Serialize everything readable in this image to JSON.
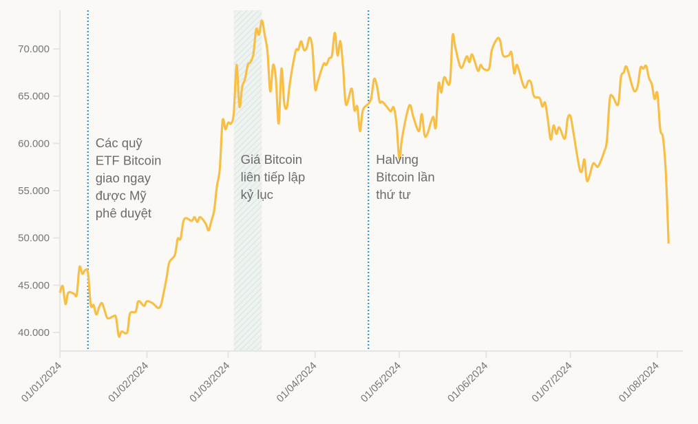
{
  "chart_data": {
    "type": "line",
    "title": "",
    "xlabel": "",
    "ylabel": "",
    "x_unit": "days since 01/01/2024",
    "xlim": [
      0,
      217
    ],
    "ylim": [
      38000,
      73500
    ],
    "y_ticks": [
      40000,
      45000,
      50000,
      55000,
      60000,
      65000,
      70000
    ],
    "y_tick_labels": [
      "40.000",
      "45.000",
      "50.000",
      "55.000",
      "60.000",
      "65.000",
      "70.000"
    ],
    "x_ticks": [
      0,
      31,
      60,
      91,
      121,
      152,
      182,
      213
    ],
    "x_tick_labels": [
      "01/01/2024",
      "01/02/2024",
      "01/03/2024",
      "01/04/2024",
      "01/05/2024",
      "01/06/2024",
      "01/07/2024",
      "01/08/2024"
    ],
    "line_color": "#f8bf47",
    "series": [
      {
        "name": "Bitcoin",
        "x": [
          0,
          1,
          2,
          3,
          5,
          6,
          7,
          8,
          9,
          10,
          11,
          12,
          13,
          14,
          15,
          16,
          17,
          19,
          20,
          21,
          22,
          24,
          25,
          27,
          28,
          30,
          31,
          33,
          35,
          36,
          37,
          38,
          39,
          41,
          42,
          43,
          44,
          45,
          47,
          48,
          49,
          50,
          52,
          53,
          54,
          55,
          56,
          57,
          58,
          59,
          60,
          61,
          62,
          63,
          64,
          65,
          66,
          67,
          68,
          69,
          70,
          71,
          72,
          73,
          74,
          75,
          76,
          77,
          78,
          79,
          80,
          81,
          82,
          84,
          85,
          86,
          87,
          88,
          89,
          90,
          91,
          92,
          94,
          95,
          96,
          97,
          98,
          99,
          100,
          101,
          102,
          104,
          105,
          106,
          107,
          108,
          110,
          111,
          112,
          113,
          114,
          115,
          117,
          118,
          119,
          120,
          121,
          122,
          124,
          125,
          126,
          128,
          129,
          130,
          131,
          133,
          134,
          135,
          136,
          137,
          139,
          140,
          141,
          143,
          145,
          146,
          147,
          149,
          150,
          151,
          153,
          154,
          156,
          157,
          158,
          160,
          161,
          162,
          163,
          165,
          166,
          167,
          168,
          169,
          171,
          172,
          173,
          174,
          175,
          176,
          177,
          178,
          180,
          181,
          182,
          183,
          185,
          186,
          187,
          188,
          190,
          191,
          192,
          194,
          195,
          196,
          197,
          199,
          200,
          201,
          202,
          204,
          205,
          206,
          207,
          208,
          209,
          210,
          211,
          212,
          213,
          214,
          215,
          216,
          217
        ],
        "values": [
          44200,
          44900,
          43000,
          44200,
          44100,
          44000,
          46900,
          46200,
          46600,
          46300,
          42900,
          42900,
          41900,
          42700,
          43100,
          42300,
          41500,
          41700,
          41600,
          39600,
          40100,
          40000,
          42000,
          42200,
          43300,
          42800,
          43300,
          43100,
          42600,
          42900,
          44200,
          45700,
          47400,
          48200,
          49900,
          49900,
          51700,
          52100,
          51800,
          52200,
          51700,
          52200,
          51500,
          50800,
          51800,
          52900,
          55500,
          57300,
          62400,
          61500,
          62200,
          62100,
          63200,
          68300,
          63900,
          66000,
          66800,
          68300,
          68600,
          69500,
          72100,
          71500,
          73000,
          71500,
          69700,
          65500,
          68300,
          66800,
          62100,
          67900,
          64200,
          63900,
          66400,
          69700,
          69900,
          70800,
          69900,
          70100,
          71200,
          70100,
          65800,
          66600,
          68400,
          68300,
          69000,
          69300,
          71700,
          69300,
          70800,
          67900,
          64100,
          65800,
          63500,
          63900,
          61300,
          63500,
          64200,
          64800,
          66800,
          66100,
          64400,
          64400,
          63700,
          63400,
          63800,
          62100,
          58400,
          60600,
          63500,
          64000,
          62800,
          61300,
          63100,
          60900,
          61000,
          62800,
          61700,
          66300,
          65400,
          67000,
          66400,
          71400,
          70100,
          68000,
          69200,
          68600,
          69400,
          67700,
          68300,
          67900,
          67900,
          69900,
          71100,
          70800,
          69300,
          69300,
          69600,
          67400,
          68300,
          66300,
          65900,
          66600,
          66400,
          65000,
          64800,
          63900,
          64300,
          62400,
          60400,
          61900,
          61000,
          61700,
          60500,
          62600,
          62900,
          61300,
          57700,
          57000,
          58300,
          56000,
          57800,
          57700,
          57600,
          59100,
          60300,
          64600,
          65000,
          64100,
          67000,
          67500,
          68100,
          66100,
          65500,
          66100,
          68000,
          67900,
          68200,
          66900,
          66300,
          64700,
          65300,
          61500,
          60600,
          57000,
          49400
        ]
      }
    ],
    "annotations": [
      {
        "type": "vline",
        "x": 10,
        "color": "#2a8fc4",
        "lines": [
          "Các quỹ",
          "ETF Bitcoin",
          "giao ngay",
          "được Mỹ",
          "phê duyệt"
        ]
      },
      {
        "type": "band",
        "x_range": [
          62,
          72
        ],
        "color": "#d6e6e2",
        "lines": [
          "Giá Bitcoin",
          "liên tiếp lập",
          "kỷ lục"
        ]
      },
      {
        "type": "vline",
        "x": 110,
        "color": "#2a8fc4",
        "lines": [
          "Halving",
          "Bitcoin lần",
          "thứ tư"
        ]
      }
    ]
  }
}
